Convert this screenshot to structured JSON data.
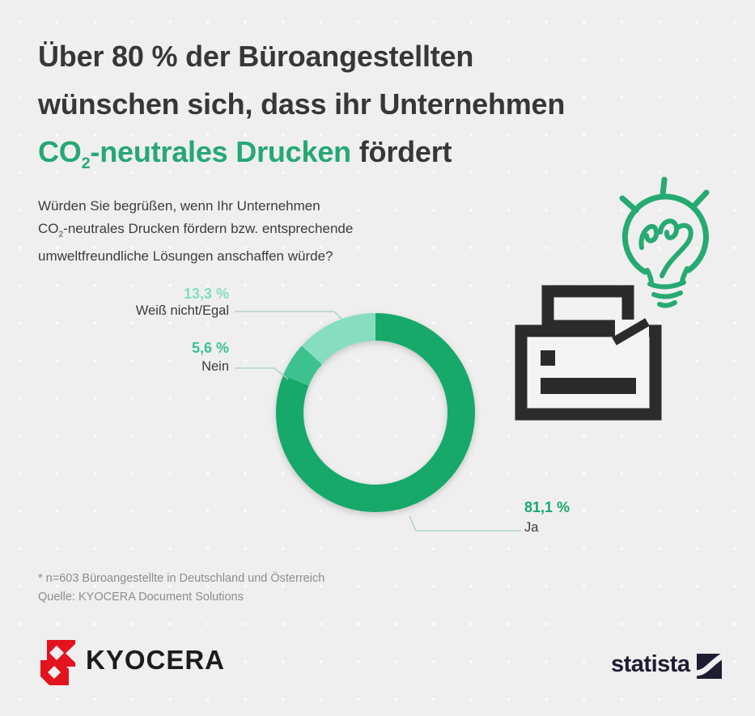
{
  "title": {
    "line1": "Über 80 % der Büroangestellten",
    "line2": "wünschen sich, dass ihr Unternehmen",
    "highlight_co": "CO",
    "highlight_sub": "2",
    "highlight_rest": "-neutrales Drucken",
    "tail": " fördert"
  },
  "question": {
    "line1": "Würden Sie begrüßen, wenn Ihr Unternehmen",
    "line2_co": "CO",
    "line2_sub": "2",
    "line2_rest": "-neutrales Drucken fördern bzw. entsprechende",
    "line3": "umweltfreundliche Lösungen anschaffen würde?"
  },
  "chart_data": {
    "type": "pie",
    "subtype": "donut",
    "unit": "%",
    "start_angle_deg": 0,
    "direction": "clockwise",
    "donut_hole_ratio": 0.72,
    "series": [
      {
        "label": "Ja",
        "value": 81.1,
        "display": "81,1 %",
        "color": "#17a96b"
      },
      {
        "label": "Nein",
        "value": 5.6,
        "display": "5,6 %",
        "color": "#3cc18f"
      },
      {
        "label": "Weiß nicht/Egal",
        "value": 13.3,
        "display": "13,3 %",
        "color": "#86ddc0"
      }
    ]
  },
  "footnote": {
    "line1": "* n=603 Büroangestellte in Deutschland und Österreich",
    "line2": "Quelle: KYOCERA Document Solutions"
  },
  "branding": {
    "kyocera_text": "KYOCERA",
    "statista_text": "statista"
  },
  "icons": {
    "printer": "printer-icon",
    "lightbulb": "idea-lightbulb-icon",
    "kyocera_mark": "kyocera-logo-mark",
    "statista_mark": "statista-logo-mark"
  },
  "colors": {
    "background": "#efeff0",
    "title_text": "#373737",
    "title_highlight": "#26a873",
    "question_text": "#3c3c3c",
    "footnote_text": "#8d8d8d",
    "leader_line": "#a5cfc0",
    "printer_icon": "#2b2b2b",
    "lightbulb_icon": "#27aa72",
    "kyocera_red": "#e3131e",
    "statista_dark": "#1e1e32"
  }
}
